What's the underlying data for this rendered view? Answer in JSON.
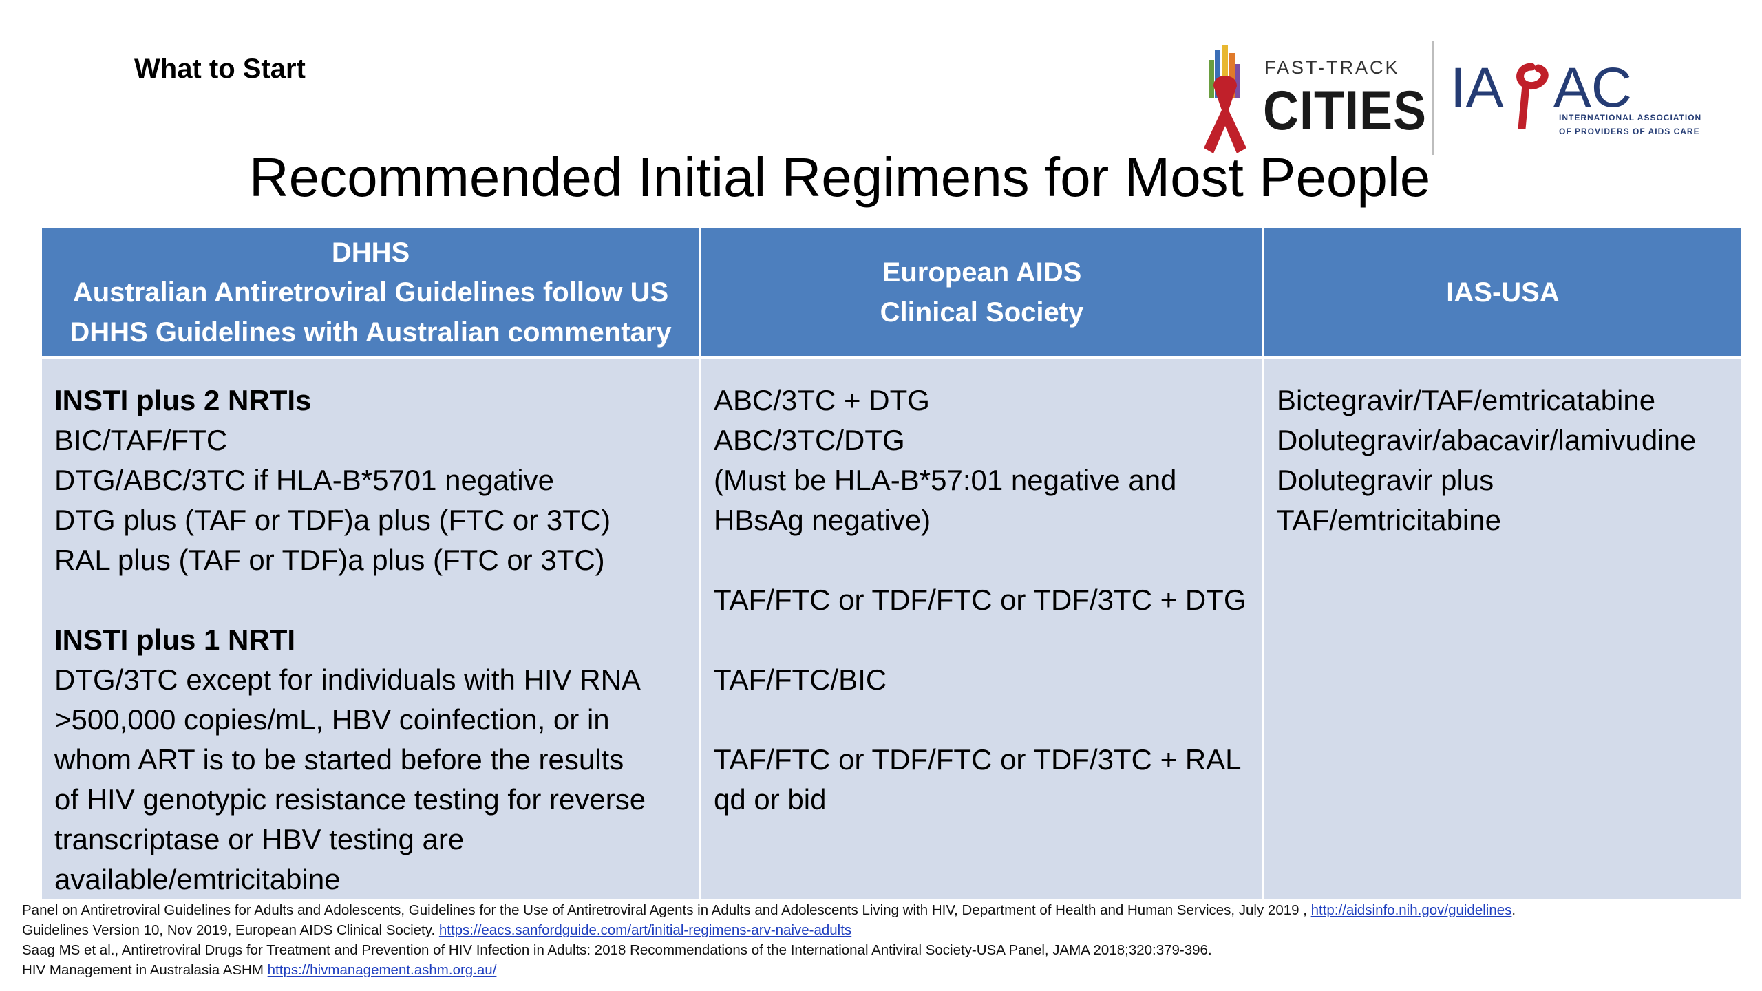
{
  "slide": {
    "kicker": "What to Start",
    "title": "Recommended Initial Regimens for Most People"
  },
  "logos": {
    "fasttrack_small": "FAST-TRACK",
    "fasttrack_big": "CITIES",
    "iapac_sub_line1": "INTERNATIONAL ASSOCIATION",
    "iapac_sub_line2": "OF PROVIDERS OF AIDS CARE",
    "iapac_wordmark": "IAPAC"
  },
  "table": {
    "headers": {
      "col1_line1": "DHHS",
      "col1_line2": "Australian Antiretroviral Guidelines follow US",
      "col1_line3": "DHHS Guidelines with Australian commentary",
      "col2_line1": "European AIDS",
      "col2_line2": "Clinical Society",
      "col3_line1": "IAS-USA"
    },
    "dhhs": [
      "INSTI plus 2 NRTIs",
      "BIC/TAF/FTC",
      "DTG/ABC/3TC if HLA-B*5701 negative",
      "DTG plus (TAF or TDF)a plus (FTC or 3TC)",
      "RAL plus (TAF or TDF)a plus (FTC or 3TC)",
      "",
      "INSTI plus 1 NRTI",
      "DTG/3TC  except for individuals with HIV RNA",
      ">500,000 copies/mL, HBV coinfection, or in",
      "whom ART is to be started before the results",
      "of HIV genotypic resistance testing for reverse",
      "transcriptase or HBV testing are",
      "available/emtricitabine"
    ],
    "eacs": [
      "ABC/3TC + DTG",
      "ABC/3TC/DTG",
      "(Must be HLA-B*57:01 negative and",
      "HBsAg negative)",
      "",
      "TAF/FTC or TDF/FTC or TDF/3TC + DTG",
      "",
      "TAF/FTC/BIC",
      "",
      "TAF/FTC or TDF/FTC or TDF/3TC + RAL",
      "qd or bid"
    ],
    "ias": [
      "Bictegravir/TAF/emtricatabine",
      "Dolutegravir/abacavir/lamivudine",
      "Dolutegravir plus",
      "TAF/emtricitabine"
    ]
  },
  "references": {
    "ref1_text": "Panel on Antiretroviral Guidelines for Adults and Adolescents, Guidelines for the Use of Antiretroviral Agents in Adults and Adolescents Living with HIV, Department of Health and Human Services, July 2019 ,",
    "ref1_link": "http://aidsinfo.nih.gov/guidelines",
    "ref1_end": ".",
    "ref2_text": "Guidelines Version 10, Nov 2019, European AIDS Clinical Society.",
    "ref2_link": "https://eacs.sanfordguide.com/art/initial-regimens-arv-naive-adults",
    "ref3_text": "Saag MS et al., Antiretroviral Drugs for Treatment and Prevention of HIV Infection in Adults: 2018 Recommendations of the International Antiviral Society-USA Panel, JAMA 2018;320:379-396.",
    "ref4_text": "HIV Management in Australasia ASHM",
    "ref4_link": "https://hivmanagement.ashm.org.au/"
  },
  "colors": {
    "header_bg": "#4d7fbe",
    "cell_bg": "#d3dbea",
    "iapac_blue": "#253c74",
    "ribbon_red": "#c0202a",
    "link": "#1f3fbf"
  }
}
